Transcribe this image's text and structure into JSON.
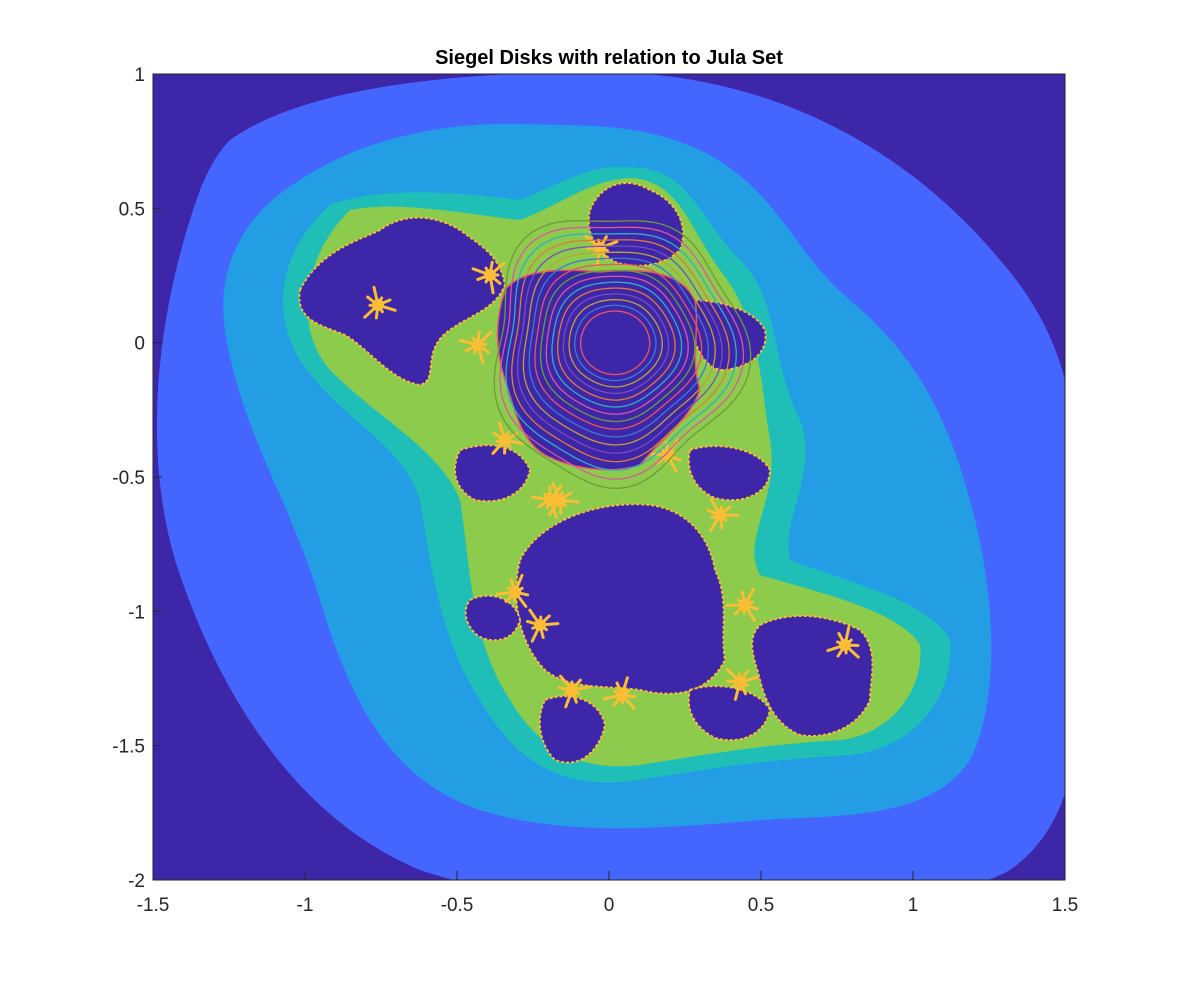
{
  "chart_data": {
    "type": "heatmap",
    "title": "Siegel Disks with relation to Jula Set",
    "xlabel": "",
    "ylabel": "",
    "xlim": [
      -1.5,
      1.5
    ],
    "ylim": [
      -2,
      1
    ],
    "x_ticks": [
      -1.5,
      -1,
      -0.5,
      0,
      0.5,
      1,
      1.5
    ],
    "y_ticks": [
      1,
      0.5,
      0,
      -0.5,
      -1,
      -1.5,
      -2
    ],
    "x_tick_labels": [
      "-1.5",
      "-1",
      "-0.5",
      "0",
      "0.5",
      "1",
      "1.5"
    ],
    "y_tick_labels": [
      "1",
      "0.5",
      "0",
      "-0.5",
      "-1",
      "-1.5",
      "-2"
    ],
    "grid": false,
    "box": true,
    "colormap": "parula",
    "escape_bands": [
      {
        "level": 1,
        "color": "#3e26a8"
      },
      {
        "level": 2,
        "color": "#4466fe"
      },
      {
        "level": 3,
        "color": "#239ee4"
      },
      {
        "level": 4,
        "color": "#1fbfb8"
      },
      {
        "level": 5,
        "color": "#8ccb4b"
      },
      {
        "level": 6,
        "color": "#fbbd34"
      }
    ],
    "filled_julia_color": "#3e26a8",
    "siegel_disk": {
      "center": [
        0.0,
        0.0
      ],
      "orbit_count": 16,
      "orbit_colors": [
        "#e8575e",
        "#3b7bd3",
        "#c0a03a",
        "#7a4cc2",
        "#e07c3a",
        "#2fb0c9",
        "#d85a9c",
        "#6f9a3e"
      ]
    }
  }
}
